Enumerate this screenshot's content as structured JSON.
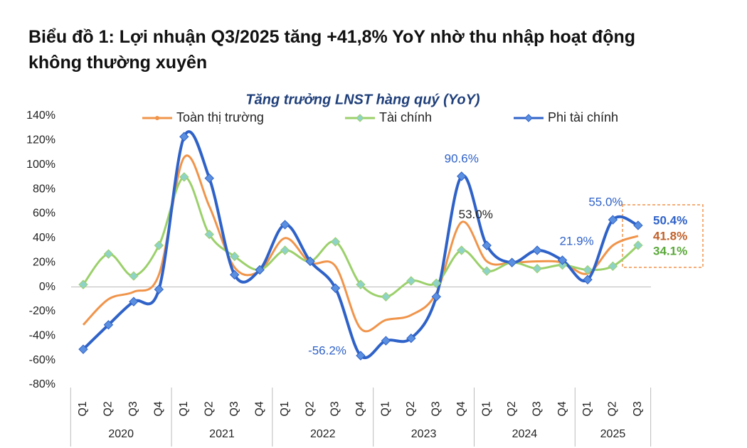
{
  "title_lines": [
    "Biểu đồ 1: Lợi nhuận Q3/2025 tăng +41,8% YoY nhờ thu nhập hoạt động",
    "không thường xuyên"
  ],
  "chart_data": {
    "type": "line",
    "title": "Tăng trưởng LNST hàng quý (YoY)",
    "categories": [
      "Q1",
      "Q2",
      "Q3",
      "Q4",
      "Q1",
      "Q2",
      "Q3",
      "Q4",
      "Q1",
      "Q2",
      "Q3",
      "Q4",
      "Q1",
      "Q2",
      "Q3",
      "Q4",
      "Q1",
      "Q2",
      "Q3",
      "Q4",
      "Q1",
      "Q2",
      "Q3"
    ],
    "years": [
      "2020",
      "2021",
      "2022",
      "2023",
      "2024",
      "2025"
    ],
    "ylim": [
      -80,
      140
    ],
    "yticks": [
      {
        "value": -80,
        "label": "-80%"
      },
      {
        "value": -60,
        "label": "-60%"
      },
      {
        "value": -40,
        "label": "-40%"
      },
      {
        "value": -20,
        "label": "-20%"
      },
      {
        "value": 0,
        "label": "0%"
      },
      {
        "value": 20,
        "label": "20%"
      },
      {
        "value": 40,
        "label": "40%"
      },
      {
        "value": 60,
        "label": "60%"
      },
      {
        "value": 80,
        "label": "80%"
      },
      {
        "value": 100,
        "label": "100%"
      },
      {
        "value": 120,
        "label": "120%"
      },
      {
        "value": 140,
        "label": "140%"
      }
    ],
    "grid": false,
    "series": [
      {
        "name": "Toàn thị trường",
        "color": "#f0944a",
        "marker": "none",
        "values": [
          -31,
          -10,
          -4,
          10,
          106,
          66,
          16,
          13,
          40,
          20,
          17,
          -34,
          -27,
          -23,
          -5,
          53.0,
          21,
          20,
          21,
          20,
          11,
          34,
          41.8
        ],
        "value_labels": [
          null,
          null,
          null,
          null,
          null,
          null,
          null,
          null,
          null,
          null,
          null,
          null,
          null,
          null,
          null,
          "53.0%",
          null,
          null,
          null,
          null,
          null,
          null,
          "41.8%"
        ]
      },
      {
        "name": "Tài chính",
        "color": "#9bd06a",
        "marker": "diamond",
        "values": [
          2,
          27,
          9,
          34,
          90,
          43,
          25,
          14,
          30,
          21,
          37,
          2,
          -8,
          5,
          3,
          30,
          13,
          20,
          15,
          18,
          14,
          17,
          34.1
        ],
        "value_labels": [
          null,
          null,
          null,
          null,
          null,
          null,
          null,
          null,
          null,
          null,
          null,
          null,
          null,
          null,
          null,
          null,
          null,
          null,
          null,
          null,
          null,
          null,
          "34.1%"
        ]
      },
      {
        "name": "Phi tài chính",
        "color": "#2f62c8",
        "marker": "diamond",
        "values": [
          -51,
          -31,
          -12,
          -2,
          123,
          89,
          10,
          14,
          51,
          21,
          -1,
          -56.2,
          -44,
          -42,
          -8,
          90.6,
          34,
          20,
          30,
          21.9,
          6,
          55.0,
          50.4
        ],
        "value_labels": [
          null,
          null,
          null,
          null,
          null,
          null,
          null,
          null,
          null,
          null,
          null,
          "-56.2%",
          null,
          null,
          null,
          "90.6%",
          null,
          null,
          null,
          "21.9%",
          null,
          "55.0%",
          "50.4%"
        ]
      }
    ]
  }
}
